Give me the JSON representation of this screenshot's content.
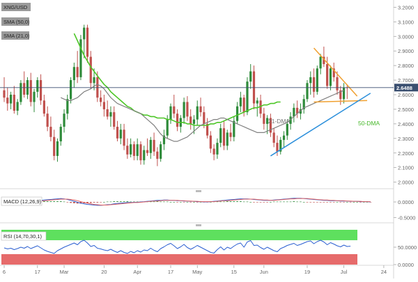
{
  "window": {
    "symbol": "XNG/USD"
  },
  "indicators": {
    "main": [
      "SMA (50,0)",
      "SMA (21,0)"
    ],
    "macd_label": "MACD (12,26,9)",
    "rsi_label": "RSI (14,70,30,1)"
  },
  "annotations": {
    "dma21": "21-DMA",
    "dma50": "50-DMA"
  },
  "last_price": "2.6488",
  "colors": {
    "bull": "#2e8b3a",
    "bear": "#c0504d",
    "sma50": "#4cc626",
    "sma21": "#808080",
    "resistance": "#f0a030",
    "support": "#2b8fdb",
    "price_line": "#3a4f70",
    "rsi_overbought": "#5ee05e",
    "rsi_oversold": "#e66b6b",
    "macd_line": "#2b5fd1",
    "signal_line": "#e06060"
  },
  "chart_data": [
    {
      "type": "candlestick",
      "title": "XNG/USD",
      "series_names": [
        "SMA (50,0)",
        "SMA (21,0)"
      ],
      "x_tick_labels": [
        "6",
        "17",
        "Mar",
        "20",
        "Apr",
        "17",
        "May",
        "15",
        "Jun",
        "19",
        "Jul",
        "24"
      ],
      "y_tick_labels": [
        "2.0000",
        "2.1000",
        "2.2000",
        "2.3000",
        "2.4000",
        "2.5000",
        "2.6000",
        "2.7000",
        "2.8000",
        "2.9000",
        "3.0000",
        "3.1000",
        "3.2000"
      ],
      "ylim": [
        1.96,
        3.24
      ],
      "candles": [
        [
          2.63,
          2.72,
          2.55,
          2.58
        ],
        [
          2.58,
          2.65,
          2.49,
          2.54
        ],
        [
          2.54,
          2.62,
          2.5,
          2.6
        ],
        [
          2.6,
          2.66,
          2.47,
          2.49
        ],
        [
          2.49,
          2.57,
          2.46,
          2.55
        ],
        [
          2.55,
          2.7,
          2.53,
          2.68
        ],
        [
          2.68,
          2.76,
          2.58,
          2.6
        ],
        [
          2.6,
          2.72,
          2.57,
          2.7
        ],
        [
          2.7,
          2.75,
          2.52,
          2.55
        ],
        [
          2.55,
          2.64,
          2.48,
          2.62
        ],
        [
          2.62,
          2.72,
          2.58,
          2.7
        ],
        [
          2.7,
          2.74,
          2.53,
          2.56
        ],
        [
          2.56,
          2.6,
          2.45,
          2.47
        ],
        [
          2.47,
          2.52,
          2.35,
          2.38
        ],
        [
          2.38,
          2.45,
          2.28,
          2.31
        ],
        [
          2.31,
          2.36,
          2.15,
          2.18
        ],
        [
          2.18,
          2.3,
          2.14,
          2.28
        ],
        [
          2.28,
          2.4,
          2.25,
          2.38
        ],
        [
          2.38,
          2.5,
          2.34,
          2.47
        ],
        [
          2.47,
          2.6,
          2.43,
          2.57
        ],
        [
          2.57,
          2.72,
          2.54,
          2.7
        ],
        [
          2.7,
          2.82,
          2.65,
          2.79
        ],
        [
          2.79,
          2.9,
          2.68,
          2.72
        ],
        [
          2.72,
          3.01,
          2.7,
          2.98
        ],
        [
          2.98,
          3.08,
          2.85,
          3.06
        ],
        [
          3.06,
          3.08,
          2.82,
          2.86
        ],
        [
          2.86,
          2.9,
          2.64,
          2.68
        ],
        [
          2.68,
          2.78,
          2.63,
          2.72
        ],
        [
          2.72,
          2.76,
          2.55,
          2.58
        ],
        [
          2.58,
          2.63,
          2.52,
          2.55
        ],
        [
          2.55,
          2.6,
          2.45,
          2.5
        ],
        [
          2.5,
          2.56,
          2.43,
          2.45
        ],
        [
          2.45,
          2.52,
          2.38,
          2.48
        ],
        [
          2.48,
          2.52,
          2.36,
          2.38
        ],
        [
          2.38,
          2.42,
          2.28,
          2.3
        ],
        [
          2.3,
          2.4,
          2.26,
          2.36
        ],
        [
          2.36,
          2.4,
          2.22,
          2.25
        ],
        [
          2.25,
          2.3,
          2.16,
          2.19
        ],
        [
          2.19,
          2.3,
          2.17,
          2.26
        ],
        [
          2.26,
          2.28,
          2.15,
          2.18
        ],
        [
          2.18,
          2.3,
          2.15,
          2.26
        ],
        [
          2.26,
          2.28,
          2.12,
          2.15
        ],
        [
          2.15,
          2.25,
          2.12,
          2.22
        ],
        [
          2.22,
          2.3,
          2.18,
          2.2
        ],
        [
          2.2,
          2.31,
          2.16,
          2.29
        ],
        [
          2.29,
          2.34,
          2.18,
          2.21
        ],
        [
          2.21,
          2.24,
          2.11,
          2.16
        ],
        [
          2.16,
          2.28,
          2.14,
          2.26
        ],
        [
          2.26,
          2.36,
          2.22,
          2.32
        ],
        [
          2.32,
          2.46,
          2.3,
          2.43
        ],
        [
          2.43,
          2.54,
          2.4,
          2.52
        ],
        [
          2.52,
          2.6,
          2.44,
          2.47
        ],
        [
          2.47,
          2.5,
          2.35,
          2.38
        ],
        [
          2.38,
          2.46,
          2.34,
          2.44
        ],
        [
          2.44,
          2.58,
          2.4,
          2.55
        ],
        [
          2.55,
          2.59,
          2.42,
          2.45
        ],
        [
          2.45,
          2.5,
          2.36,
          2.4
        ],
        [
          2.4,
          2.46,
          2.33,
          2.43
        ],
        [
          2.43,
          2.56,
          2.39,
          2.52
        ],
        [
          2.52,
          2.58,
          2.45,
          2.48
        ],
        [
          2.48,
          2.52,
          2.37,
          2.4
        ],
        [
          2.4,
          2.44,
          2.3,
          2.32
        ],
        [
          2.32,
          2.35,
          2.2,
          2.23
        ],
        [
          2.23,
          2.26,
          2.15,
          2.19
        ],
        [
          2.19,
          2.3,
          2.16,
          2.27
        ],
        [
          2.27,
          2.4,
          2.24,
          2.37
        ],
        [
          2.37,
          2.42,
          2.22,
          2.25
        ],
        [
          2.25,
          2.36,
          2.22,
          2.34
        ],
        [
          2.34,
          2.4,
          2.28,
          2.31
        ],
        [
          2.31,
          2.45,
          2.28,
          2.42
        ],
        [
          2.42,
          2.55,
          2.4,
          2.52
        ],
        [
          2.52,
          2.62,
          2.48,
          2.58
        ],
        [
          2.58,
          2.6,
          2.45,
          2.48
        ],
        [
          2.48,
          2.72,
          2.46,
          2.69
        ],
        [
          2.69,
          2.81,
          2.64,
          2.76
        ],
        [
          2.76,
          2.8,
          2.5,
          2.54
        ],
        [
          2.54,
          2.58,
          2.45,
          2.56
        ],
        [
          2.56,
          2.6,
          2.44,
          2.47
        ],
        [
          2.47,
          2.51,
          2.36,
          2.4
        ],
        [
          2.4,
          2.46,
          2.33,
          2.44
        ],
        [
          2.44,
          2.47,
          2.31,
          2.34
        ],
        [
          2.34,
          2.37,
          2.24,
          2.27
        ],
        [
          2.27,
          2.32,
          2.18,
          2.21
        ],
        [
          2.21,
          2.31,
          2.19,
          2.29
        ],
        [
          2.29,
          2.35,
          2.24,
          2.32
        ],
        [
          2.32,
          2.43,
          2.29,
          2.4
        ],
        [
          2.4,
          2.48,
          2.36,
          2.45
        ],
        [
          2.45,
          2.54,
          2.41,
          2.51
        ],
        [
          2.51,
          2.56,
          2.44,
          2.47
        ],
        [
          2.47,
          2.54,
          2.43,
          2.5
        ],
        [
          2.5,
          2.6,
          2.47,
          2.57
        ],
        [
          2.57,
          2.7,
          2.55,
          2.68
        ],
        [
          2.68,
          2.76,
          2.6,
          2.72
        ],
        [
          2.72,
          2.78,
          2.58,
          2.62
        ],
        [
          2.62,
          2.8,
          2.6,
          2.78
        ],
        [
          2.78,
          2.88,
          2.74,
          2.86
        ],
        [
          2.86,
          2.93,
          2.79,
          2.81
        ],
        [
          2.81,
          2.86,
          2.64,
          2.66
        ],
        [
          2.66,
          2.8,
          2.63,
          2.78
        ],
        [
          2.78,
          2.82,
          2.69,
          2.72
        ],
        [
          2.72,
          2.76,
          2.6,
          2.63
        ],
        [
          2.63,
          2.66,
          2.53,
          2.57
        ],
        [
          2.57,
          2.68,
          2.54,
          2.65
        ],
        [
          2.65,
          2.67,
          2.57,
          2.6488
        ]
      ],
      "sma21": [
        2.58,
        2.57,
        2.56,
        2.56,
        2.57,
        2.58,
        2.6,
        2.62,
        2.63,
        2.64,
        2.66,
        2.67,
        2.66,
        2.64,
        2.61,
        2.58,
        2.56,
        2.54,
        2.53,
        2.52,
        2.51,
        2.5,
        2.49,
        2.48,
        2.47,
        2.45,
        2.43,
        2.41,
        2.39,
        2.36,
        2.33,
        2.31,
        2.3,
        2.29,
        2.28,
        2.28,
        2.29,
        2.3,
        2.31,
        2.33,
        2.35,
        2.37,
        2.39,
        2.4,
        2.41,
        2.42,
        2.43,
        2.43,
        2.44,
        2.44,
        2.43,
        2.42,
        2.41,
        2.4,
        2.39,
        2.38,
        2.37,
        2.36,
        2.35,
        2.34,
        2.34,
        2.34,
        2.35,
        2.36,
        2.37,
        2.38,
        2.39,
        2.4,
        2.41,
        2.43,
        2.45,
        2.47,
        2.49,
        2.51,
        2.52,
        2.53,
        2.54,
        2.55,
        2.56,
        2.57,
        2.58,
        2.59,
        2.6,
        2.61,
        2.62,
        2.63
      ],
      "sma21_start_index": 17,
      "sma50": [
        3.02,
        2.97,
        2.92,
        2.87,
        2.83,
        2.79,
        2.76,
        2.73,
        2.7,
        2.67,
        2.65,
        2.62,
        2.6,
        2.58,
        2.56,
        2.54,
        2.52,
        2.51,
        2.49,
        2.48,
        2.47,
        2.46,
        2.46,
        2.45,
        2.45,
        2.44,
        2.44,
        2.44,
        2.43,
        2.43,
        2.42,
        2.41,
        2.41,
        2.41,
        2.4,
        2.4,
        2.39,
        2.39,
        2.39,
        2.39,
        2.39,
        2.4,
        2.4,
        2.41,
        2.41,
        2.42,
        2.43,
        2.44,
        2.45,
        2.46,
        2.47,
        2.48,
        2.49,
        2.5,
        2.51,
        2.51,
        2.52,
        2.53,
        2.53,
        2.54,
        2.54,
        2.55,
        2.55
      ],
      "sma50_start_index": 21,
      "trendlines": {
        "resistance": [
          [
            93,
            2.92
          ],
          [
            106,
            2.59
          ]
        ],
        "horizontal_support": [
          [
            93,
            2.55
          ],
          [
            109,
            2.56
          ]
        ],
        "rising_support": [
          [
            80,
            2.18
          ],
          [
            110,
            2.61
          ]
        ]
      }
    },
    {
      "type": "line",
      "title": "MACD (12,26,9)",
      "y_tick_labels": [
        "-0.5000",
        "0.0000"
      ],
      "ylim": [
        -0.65,
        0.18
      ],
      "macd": [
        0.02,
        0.01,
        0.0,
        -0.01,
        -0.01,
        0.0,
        0.01,
        0.02,
        0.02,
        0.03,
        0.04,
        0.05,
        0.06,
        0.07,
        0.08,
        0.09,
        0.1,
        0.11,
        0.1,
        0.08,
        0.05,
        0.02,
        -0.01,
        -0.04,
        -0.06,
        -0.08,
        -0.09,
        -0.1,
        -0.11,
        -0.11,
        -0.1,
        -0.09,
        -0.08,
        -0.06,
        -0.05,
        -0.04,
        -0.03,
        -0.02,
        -0.02,
        -0.01,
        -0.01,
        0.0,
        0.01,
        0.02,
        0.03,
        0.04,
        0.05,
        0.05,
        0.06,
        0.06,
        0.05,
        0.05,
        0.04,
        0.04,
        0.03,
        0.03,
        0.02,
        0.02,
        0.01,
        0.01,
        0.0,
        0.0,
        0.01,
        0.02,
        0.03,
        0.04,
        0.05,
        0.06,
        0.07,
        0.08,
        0.09,
        0.1,
        0.1,
        0.1,
        0.09,
        0.08,
        0.07,
        0.06,
        0.05,
        0.05,
        0.05,
        0.06,
        0.07,
        0.08,
        0.09,
        0.1,
        0.11,
        0.12,
        0.12,
        0.12,
        0.11,
        0.1,
        0.09,
        0.08,
        0.07,
        0.06,
        0.05,
        0.05,
        0.04,
        0.04,
        0.04,
        0.03,
        0.03,
        0.03,
        0.02,
        0.02,
        0.02,
        0.01,
        0.01,
        0.01,
        0.0
      ],
      "signal": [
        0.01,
        0.01,
        0.01,
        0.0,
        0.0,
        0.0,
        0.0,
        0.01,
        0.01,
        0.02,
        0.02,
        0.03,
        0.04,
        0.05,
        0.06,
        0.07,
        0.08,
        0.09,
        0.09,
        0.09,
        0.08,
        0.06,
        0.04,
        0.01,
        -0.02,
        -0.04,
        -0.06,
        -0.08,
        -0.09,
        -0.1,
        -0.1,
        -0.1,
        -0.09,
        -0.08,
        -0.07,
        -0.06,
        -0.05,
        -0.04,
        -0.03,
        -0.02,
        -0.02,
        -0.01,
        0.0,
        0.01,
        0.02,
        0.03,
        0.03,
        0.04,
        0.05,
        0.05,
        0.05,
        0.05,
        0.05,
        0.04,
        0.04,
        0.03,
        0.03,
        0.02,
        0.02,
        0.01,
        0.01,
        0.01,
        0.01,
        0.01,
        0.02,
        0.03,
        0.04,
        0.04,
        0.05,
        0.06,
        0.07,
        0.08,
        0.09,
        0.09,
        0.09,
        0.09,
        0.08,
        0.07,
        0.06,
        0.06,
        0.05,
        0.05,
        0.06,
        0.07,
        0.08,
        0.09,
        0.1,
        0.1,
        0.11,
        0.11,
        0.11,
        0.11,
        0.1,
        0.09,
        0.08,
        0.07,
        0.06,
        0.06,
        0.05,
        0.05,
        0.04,
        0.04,
        0.04,
        0.03,
        0.03,
        0.02,
        0.02,
        0.02,
        0.01,
        0.01,
        0.01
      ]
    },
    {
      "type": "line",
      "title": "RSI (14,70,30,1)",
      "y_tick_labels": [
        "50.0000",
        "0.0000"
      ],
      "ylim": [
        0,
        100
      ],
      "bands": {
        "overbought": 70,
        "oversold": 30
      },
      "rsi": [
        48,
        45,
        47,
        43,
        46,
        50,
        47,
        52,
        46,
        50,
        54,
        48,
        42,
        38,
        35,
        32,
        40,
        45,
        50,
        54,
        58,
        62,
        57,
        66,
        70,
        62,
        52,
        55,
        47,
        45,
        42,
        40,
        44,
        39,
        35,
        40,
        35,
        32,
        38,
        34,
        40,
        36,
        42,
        40,
        47,
        41,
        37,
        46,
        51,
        57,
        61,
        54,
        46,
        51,
        58,
        49,
        44,
        49,
        55,
        50,
        45,
        40,
        35,
        33,
        43,
        51,
        42,
        50,
        46,
        53,
        59,
        62,
        50,
        65,
        69,
        55,
        56,
        49,
        44,
        50,
        45,
        40,
        37,
        46,
        50,
        55,
        58,
        61,
        55,
        58,
        62,
        66,
        68,
        60,
        66,
        70,
        65,
        57,
        63,
        59,
        54,
        51,
        56,
        52,
        53
      ]
    }
  ]
}
